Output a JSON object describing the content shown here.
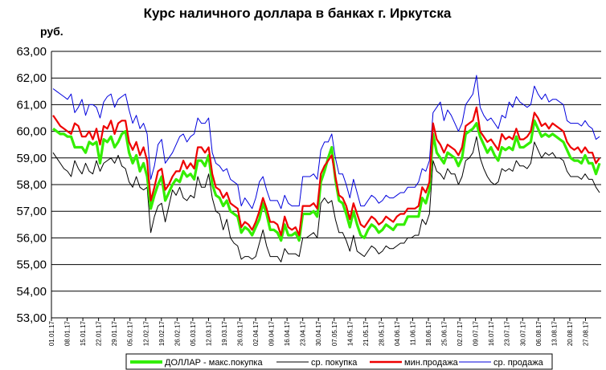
{
  "chart_data": {
    "type": "line",
    "title": "Курс наличного доллара  в банках г. Иркутска",
    "ylabel": "руб.",
    "ylim": [
      53,
      63
    ],
    "grid": true,
    "legend_position": "bottom",
    "y_ticks": [
      "63,00",
      "62,00",
      "61,00",
      "60,00",
      "59,00",
      "58,00",
      "57,00",
      "56,00",
      "55,00",
      "54,00",
      "53,00"
    ],
    "x_ticks": [
      "01.01.17",
      "08.01.17",
      "15.01.17",
      "22.01.17",
      "29.01.17",
      "05.02.17",
      "12.02.17",
      "19.02.17",
      "26.02.17",
      "05.03.17",
      "12.03.17",
      "19.03.17",
      "26.03.17",
      "02.04.17",
      "09.04.17",
      "16.04.17",
      "23.04.17",
      "30.04.17",
      "07.05.17",
      "14.05.17",
      "21.05.17",
      "28.05.17",
      "04.06.17",
      "11.06.17",
      "18.06.17",
      "25.06.17",
      "02.07.17",
      "09.07.17",
      "16.07.17",
      "23.07.17",
      "30.07.17",
      "06.08.17",
      "13.08.17",
      "20.08.17",
      "27.08.17"
    ],
    "series": [
      {
        "name": "ДОЛЛАР - макс.покупка",
        "color": "#33ee00",
        "values": [
          60.1,
          60.0,
          59.9,
          59.9,
          59.8,
          59.8,
          59.4,
          59.4,
          59.4,
          59.2,
          59.6,
          59.5,
          59.6,
          58.8,
          59.7,
          59.6,
          59.8,
          59.4,
          59.6,
          59.9,
          60.0,
          59.2,
          58.8,
          59.1,
          58.5,
          58.8,
          58.3,
          57.1,
          57.6,
          58.0,
          58.3,
          57.4,
          57.7,
          58.0,
          58.2,
          58.1,
          58.5,
          58.3,
          58.4,
          58.2,
          58.9,
          58.9,
          58.7,
          59.1,
          58.0,
          57.6,
          57.5,
          57.2,
          57.4,
          57.0,
          56.9,
          56.8,
          56.2,
          56.4,
          56.3,
          56.1,
          56.4,
          56.7,
          57.3,
          56.9,
          56.3,
          56.3,
          56.2,
          55.9,
          56.5,
          56.1,
          56.1,
          56.2,
          55.9,
          56.9,
          56.9,
          56.9,
          57.0,
          56.8,
          58.1,
          58.5,
          59.0,
          59.4,
          58.2,
          57.4,
          57.3,
          56.9,
          56.4,
          57.0,
          56.5,
          56.1,
          56.0,
          56.3,
          56.5,
          56.4,
          56.2,
          56.3,
          56.5,
          56.4,
          56.3,
          56.5,
          56.5,
          56.5,
          56.8,
          56.8,
          56.8,
          56.8,
          57.5,
          57.3,
          57.8,
          59.9,
          59.2,
          59.0,
          58.8,
          59.2,
          59.1,
          59.0,
          58.7,
          59.0,
          59.9,
          60.0,
          60.1,
          60.3,
          59.8,
          59.5,
          59.2,
          59.4,
          59.1,
          58.9,
          59.4,
          59.3,
          59.4,
          59.3,
          59.8,
          59.4,
          59.4,
          59.5,
          59.6,
          60.4,
          60.1,
          59.8,
          59.9,
          59.8,
          59.9,
          59.8,
          59.7,
          59.6,
          59.3,
          59.0,
          58.9,
          58.9,
          58.8,
          59.1,
          58.8,
          58.8,
          58.4,
          58.8
        ]
      },
      {
        "name": "ср. покупка",
        "color": "#000000",
        "values": [
          59.2,
          59.0,
          58.8,
          58.6,
          58.5,
          58.3,
          58.9,
          58.6,
          58.4,
          58.8,
          58.5,
          58.4,
          58.9,
          58.5,
          58.8,
          58.9,
          59.0,
          58.8,
          59.1,
          58.7,
          58.6,
          58.1,
          57.9,
          58.3,
          57.9,
          57.8,
          57.9,
          56.2,
          56.8,
          57.2,
          57.3,
          56.6,
          57.2,
          57.8,
          57.6,
          57.9,
          57.5,
          57.4,
          57.6,
          57.5,
          58.3,
          57.9,
          57.9,
          58.4,
          57.5,
          57.0,
          56.9,
          56.3,
          56.7,
          56.0,
          55.8,
          55.7,
          55.2,
          55.3,
          55.3,
          55.2,
          55.3,
          55.8,
          56.3,
          55.7,
          55.3,
          55.3,
          55.3,
          55.1,
          55.6,
          55.4,
          55.4,
          55.4,
          55.3,
          56.0,
          56.0,
          56.1,
          56.2,
          56.0,
          57.3,
          57.5,
          57.3,
          57.4,
          56.7,
          56.2,
          56.2,
          55.9,
          55.5,
          56.1,
          55.5,
          55.4,
          55.3,
          55.5,
          55.7,
          55.6,
          55.4,
          55.5,
          55.7,
          55.6,
          55.6,
          55.7,
          55.8,
          55.8,
          56.0,
          56.0,
          56.1,
          56.1,
          56.7,
          56.5,
          56.9,
          58.9,
          58.5,
          58.4,
          58.2,
          58.6,
          58.4,
          58.4,
          58.0,
          58.3,
          58.9,
          59.0,
          59.2,
          59.8,
          59.0,
          58.6,
          58.3,
          58.1,
          58.0,
          58.1,
          58.6,
          58.5,
          58.6,
          58.5,
          58.9,
          58.7,
          58.7,
          58.6,
          58.8,
          59.6,
          59.3,
          59.0,
          59.2,
          59.1,
          59.2,
          59.0,
          59.0,
          58.9,
          58.5,
          58.3,
          58.3,
          58.3,
          58.2,
          58.4,
          58.2,
          58.2,
          57.9,
          57.7
        ]
      },
      {
        "name": "мин.продажа",
        "color": "#ee0000",
        "values": [
          60.6,
          60.4,
          60.2,
          60.1,
          60.0,
          59.9,
          60.3,
          60.2,
          59.8,
          59.8,
          60.0,
          59.7,
          60.1,
          59.5,
          60.2,
          60.1,
          60.4,
          59.9,
          60.3,
          60.4,
          60.4,
          59.6,
          59.3,
          59.6,
          59.1,
          59.4,
          58.9,
          57.4,
          57.9,
          58.5,
          58.6,
          57.8,
          58.0,
          58.3,
          58.5,
          58.5,
          58.9,
          58.6,
          58.8,
          58.6,
          59.4,
          59.4,
          59.2,
          59.4,
          58.4,
          57.9,
          57.8,
          57.5,
          57.7,
          57.3,
          57.2,
          57.1,
          56.4,
          56.6,
          56.5,
          56.3,
          56.6,
          57.0,
          57.5,
          57.1,
          56.6,
          56.6,
          56.5,
          56.1,
          56.8,
          56.4,
          56.3,
          56.4,
          56.1,
          57.2,
          57.2,
          57.2,
          57.3,
          57.1,
          58.4,
          58.7,
          58.9,
          59.1,
          58.3,
          57.6,
          57.5,
          57.2,
          56.7,
          57.3,
          56.9,
          56.5,
          56.4,
          56.6,
          56.8,
          56.7,
          56.5,
          56.6,
          56.8,
          56.7,
          56.6,
          56.8,
          56.9,
          56.9,
          57.1,
          57.1,
          57.1,
          57.2,
          57.9,
          57.7,
          58.1,
          60.3,
          59.7,
          59.5,
          59.2,
          59.5,
          59.4,
          59.3,
          59.1,
          59.4,
          60.2,
          60.3,
          60.4,
          60.9,
          60.0,
          59.8,
          59.6,
          59.7,
          59.5,
          59.3,
          59.9,
          59.7,
          59.8,
          59.7,
          60.1,
          59.7,
          59.7,
          59.8,
          60.0,
          60.7,
          60.5,
          60.2,
          60.3,
          60.1,
          60.3,
          60.2,
          60.1,
          60.0,
          59.6,
          59.4,
          59.3,
          59.4,
          59.2,
          59.4,
          59.2,
          59.2,
          58.8,
          59.0
        ]
      },
      {
        "name": "ср. продажа",
        "color": "#0000dd",
        "values": [
          61.6,
          61.5,
          61.4,
          61.3,
          61.2,
          61.4,
          60.7,
          60.9,
          61.2,
          60.6,
          61.0,
          61.0,
          60.9,
          60.5,
          61.1,
          61.3,
          61.4,
          60.9,
          61.2,
          61.3,
          61.4,
          60.8,
          60.3,
          60.6,
          60.1,
          60.3,
          59.9,
          58.2,
          58.7,
          59.5,
          59.7,
          58.8,
          59.0,
          59.2,
          59.5,
          59.8,
          59.9,
          59.6,
          59.8,
          59.9,
          60.5,
          60.3,
          60.3,
          60.5,
          59.2,
          58.8,
          58.7,
          58.5,
          58.6,
          58.2,
          58.1,
          58.0,
          57.2,
          57.5,
          57.3,
          57.1,
          57.5,
          58.1,
          58.3,
          57.8,
          57.4,
          57.4,
          57.4,
          57.1,
          57.6,
          57.3,
          57.2,
          57.2,
          57.2,
          58.3,
          58.3,
          58.3,
          58.4,
          58.2,
          59.3,
          59.6,
          59.6,
          59.9,
          59.0,
          58.4,
          58.4,
          58.0,
          57.5,
          58.2,
          57.7,
          57.2,
          57.2,
          57.4,
          57.6,
          57.5,
          57.3,
          57.4,
          57.6,
          57.5,
          57.5,
          57.6,
          57.7,
          57.7,
          57.9,
          57.9,
          57.9,
          58.1,
          58.6,
          58.5,
          58.9,
          60.7,
          60.9,
          61.1,
          60.4,
          60.8,
          60.6,
          60.3,
          60.0,
          60.3,
          61.0,
          61.2,
          61.4,
          62.1,
          60.9,
          60.6,
          60.4,
          60.5,
          60.3,
          60.1,
          60.6,
          60.5,
          61.1,
          60.9,
          61.3,
          61.1,
          61.0,
          60.9,
          61.0,
          61.7,
          61.4,
          61.2,
          61.4,
          61.1,
          61.2,
          61.2,
          61.1,
          61.0,
          60.4,
          60.3,
          60.3,
          60.3,
          60.2,
          60.4,
          60.2,
          60.1,
          59.7,
          59.8
        ]
      }
    ]
  }
}
